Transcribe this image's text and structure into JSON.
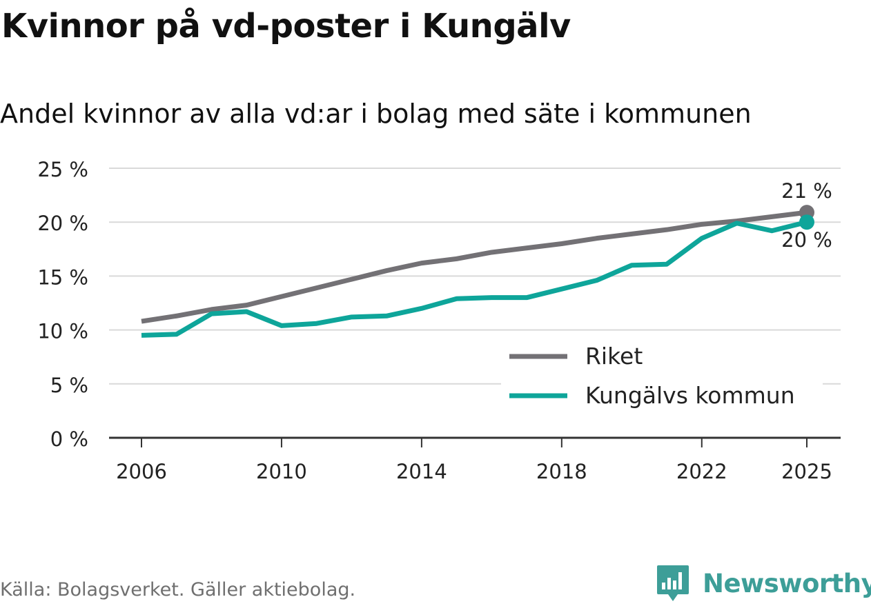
{
  "title": "Kvinnor på vd-poster i Kungälv",
  "subtitle": "Andel kvinnor av alla vd:ar i bolag med säte i kommunen",
  "source": "Källa: Bolagsverket. Gäller aktiebolag.",
  "brand": {
    "name": "Newsworthy",
    "icon": "newsworthy-logo-icon"
  },
  "colors": {
    "riket": "#737175",
    "kommun": "#0ea59a",
    "grid": "#d9d9d9",
    "axis": "#333333"
  },
  "chart_data": {
    "type": "line",
    "title": "Kvinnor på vd-poster i Kungälv",
    "subtitle": "Andel kvinnor av alla vd:ar i bolag med säte i kommunen",
    "xlabel": "",
    "ylabel": "",
    "x": [
      2006,
      2007,
      2008,
      2009,
      2010,
      2011,
      2012,
      2013,
      2014,
      2015,
      2016,
      2017,
      2018,
      2019,
      2020,
      2021,
      2022,
      2023,
      2024,
      2025
    ],
    "x_ticks": [
      2006,
      2010,
      2014,
      2018,
      2022,
      2025
    ],
    "x_tick_labels": [
      "2006",
      "2010",
      "2014",
      "2018",
      "2022",
      "2025"
    ],
    "ylim": [
      0,
      25
    ],
    "y_ticks": [
      0,
      5,
      10,
      15,
      20,
      25
    ],
    "y_tick_labels": [
      "0 %",
      "5 %",
      "10 %",
      "15 %",
      "20 %",
      "25 %"
    ],
    "grid": true,
    "legend_position": "bottom-right",
    "series": [
      {
        "name": "Riket",
        "color": "#737175",
        "values": [
          10.8,
          11.3,
          11.9,
          12.3,
          13.1,
          13.9,
          14.7,
          15.5,
          16.2,
          16.6,
          17.2,
          17.6,
          18.0,
          18.5,
          18.9,
          19.3,
          19.8,
          20.1,
          20.5,
          20.9
        ],
        "end_label": "21 %"
      },
      {
        "name": "Kungälvs kommun",
        "color": "#0ea59a",
        "values": [
          9.5,
          9.6,
          11.5,
          11.7,
          10.4,
          10.6,
          11.2,
          11.3,
          12.0,
          12.9,
          13.0,
          13.0,
          13.8,
          14.6,
          16.0,
          16.1,
          18.5,
          19.9,
          19.2,
          20.0
        ],
        "end_label": "20 %"
      }
    ]
  }
}
